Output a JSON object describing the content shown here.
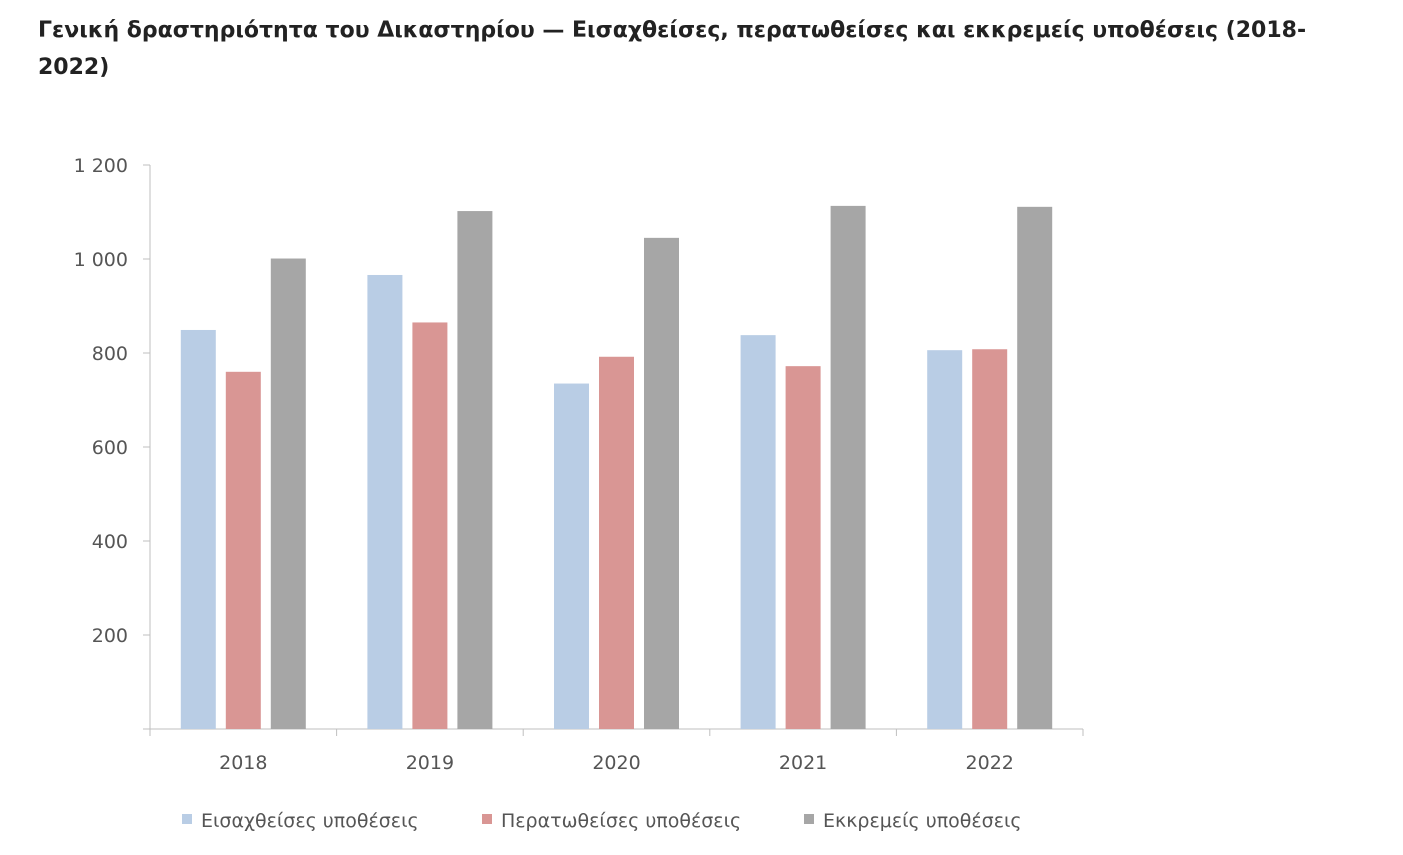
{
  "title": "Γενική δραστηριότητα του Δικαστηρίου — Εισαχθείσες, περατωθείσες και εκκρεμείς υποθέσεις (2018-2022)",
  "colors": {
    "series1": "#b9cde5",
    "series2": "#d99694",
    "series3": "#a6a6a6",
    "axis": "#bfbfbf",
    "text": "#555555"
  },
  "chart_data": {
    "type": "bar",
    "title": "Γενική δραστηριότητα του Δικαστηρίου — Εισαχθείσες, περατωθείσες και εκκρεμείς υποθέσεις (2018-2022)",
    "xlabel": "",
    "ylabel": "",
    "categories": [
      "2018",
      "2019",
      "2020",
      "2021",
      "2022"
    ],
    "series": [
      {
        "name": "Εισαχθείσες υποθέσεις",
        "values": [
          849,
          966,
          735,
          838,
          806
        ]
      },
      {
        "name": "Περατωθείσες υποθέσεις",
        "values": [
          760,
          865,
          792,
          772,
          808
        ]
      },
      {
        "name": "Εκκρεμείς υποθέσεις",
        "values": [
          1001,
          1102,
          1045,
          1113,
          1111
        ]
      }
    ],
    "ylim": [
      0,
      1200
    ],
    "yticks": [
      200,
      400,
      600,
      800,
      1000,
      1200
    ],
    "ytick_labels": [
      "200",
      "400",
      "600",
      "800",
      "1 000",
      "1 200"
    ],
    "grid": false,
    "legend_position": "bottom"
  }
}
